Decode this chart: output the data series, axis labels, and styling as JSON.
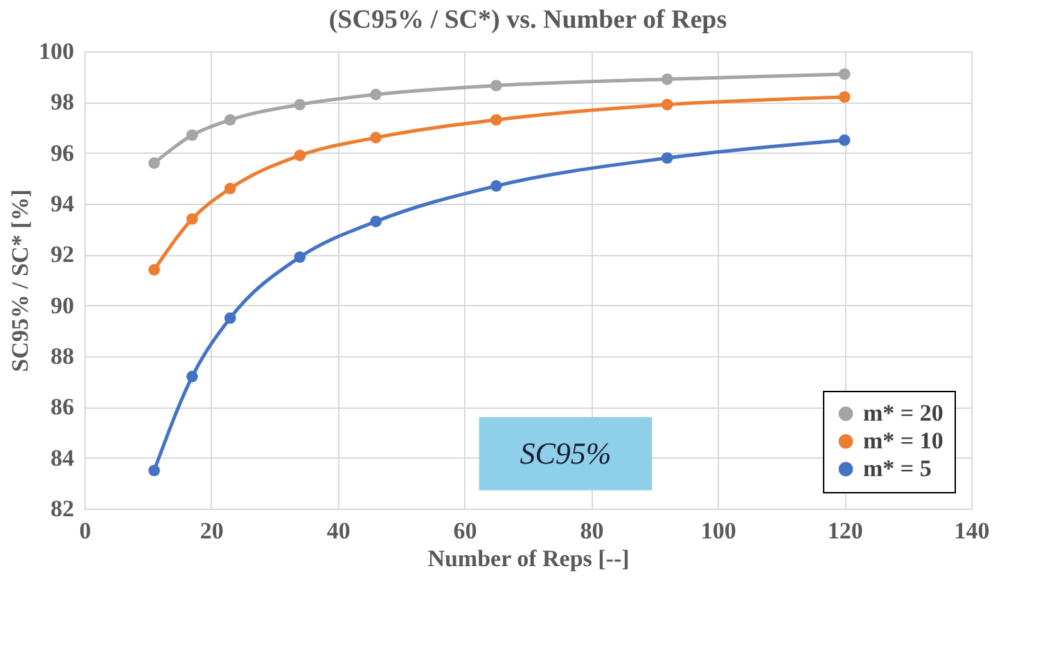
{
  "chart_data": {
    "type": "line",
    "title": "(SC95% / SC*) vs. Number of Reps",
    "xlabel": "Number of Reps [--]",
    "ylabel": "SC95% / SC* [%]",
    "x": [
      11,
      17,
      23,
      34,
      46,
      65,
      92,
      120
    ],
    "series": [
      {
        "name": "m* = 20",
        "color": "#a5a5a5",
        "values": [
          95.6,
          96.7,
          97.3,
          97.9,
          98.3,
          98.65,
          98.9,
          99.1
        ]
      },
      {
        "name": "m* = 10",
        "color": "#ed7d31",
        "values": [
          91.4,
          93.4,
          94.6,
          95.9,
          96.6,
          97.3,
          97.9,
          98.2
        ]
      },
      {
        "name": "m* = 5",
        "color": "#4472c4",
        "values": [
          83.5,
          87.2,
          89.5,
          91.9,
          93.3,
          94.7,
          95.8,
          96.5
        ]
      }
    ],
    "xlim": [
      0,
      140
    ],
    "xticks": [
      0,
      20,
      40,
      60,
      80,
      100,
      120,
      140
    ],
    "ylim": [
      82,
      100
    ],
    "yticks": [
      82,
      84,
      86,
      88,
      90,
      92,
      94,
      96,
      98,
      100
    ],
    "grid": true,
    "legend": "bottom right",
    "marker": "circle",
    "line_style": "solid",
    "annotations": [
      "SC95%"
    ]
  }
}
